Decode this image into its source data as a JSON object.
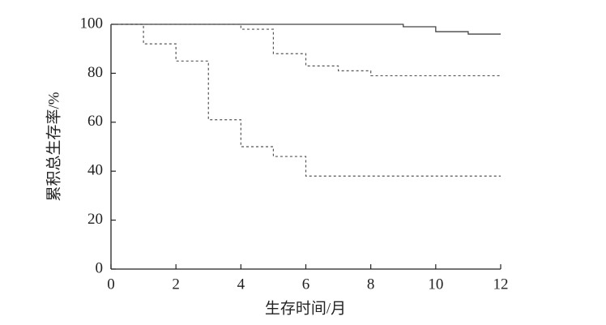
{
  "chart_data": {
    "type": "step",
    "x_label": "生存时间/月",
    "y_label": "累积总生存率/%",
    "xlim": [
      0,
      12
    ],
    "xticks": [
      0,
      2,
      4,
      6,
      8,
      10,
      12
    ],
    "ylim": [
      0,
      100
    ],
    "yticks": [
      0,
      20,
      40,
      60,
      80,
      100
    ],
    "grid": false,
    "series": [
      {
        "color": "#444444",
        "dash": "solid",
        "x": [
          0,
          9,
          10,
          11,
          12
        ],
        "values": [
          100,
          99,
          97,
          96,
          96
        ]
      },
      {
        "color": "#555555",
        "dash": "dotted",
        "x": [
          0,
          4,
          5,
          6,
          7,
          8,
          12
        ],
        "values": [
          100,
          98,
          88,
          83,
          81,
          79,
          79
        ]
      },
      {
        "color": "#555555",
        "dash": "dotted",
        "x": [
          0,
          1,
          2,
          3,
          4,
          5,
          6,
          12
        ],
        "values": [
          100,
          92,
          85,
          61,
          50,
          46,
          38,
          38
        ]
      }
    ]
  }
}
